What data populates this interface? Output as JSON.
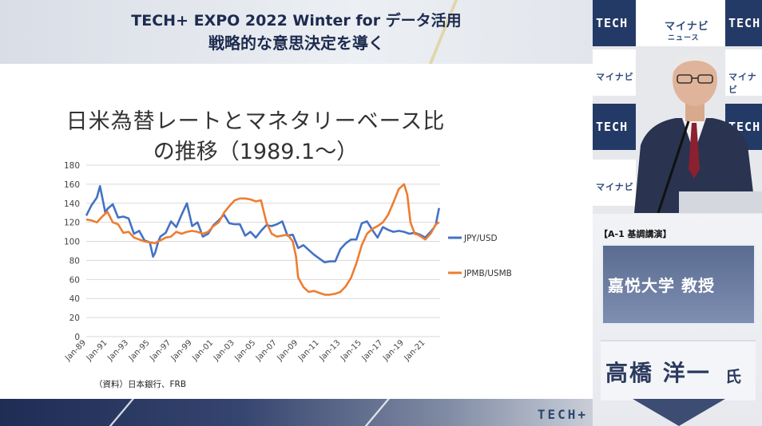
{
  "header": {
    "line1": "TECH+ EXPO 2022 Winter for データ活用",
    "line2": "戦略的な意思決定を導く"
  },
  "slide": {
    "title_line1": "日米為替レートとマネタリーベース比",
    "title_line2": "の推移（1989.1〜）",
    "source_note": "（資料）日本銀行、FRB"
  },
  "chart_data": {
    "type": "line",
    "title": "日米為替レートとマネタリーベース比の推移（1989.1〜）",
    "xlabel": "",
    "ylabel": "",
    "ylim": [
      0,
      180
    ],
    "yticks": [
      0,
      20,
      40,
      60,
      80,
      100,
      120,
      140,
      160,
      180
    ],
    "xlim": [
      1989,
      2022.4
    ],
    "xtick_labels": [
      "Jan-89",
      "Jan-91",
      "Jan-93",
      "Jan-95",
      "Jan-97",
      "Jan-99",
      "Jan-01",
      "Jan-03",
      "Jan-05",
      "Jan-07",
      "Jan-09",
      "Jan-11",
      "Jan-13",
      "Jan-15",
      "Jan-17",
      "Jan-19",
      "Jan-21"
    ],
    "grid": "horizontal",
    "legend": "right",
    "series": [
      {
        "name": "JPY/USD",
        "color": "#4472c4",
        "x": [
          1989.0,
          1989.5,
          1990.0,
          1990.3,
          1990.8,
          1991.0,
          1991.5,
          1992.0,
          1992.5,
          1993.0,
          1993.5,
          1994.0,
          1994.5,
          1995.0,
          1995.3,
          1995.5,
          1995.8,
          1996.0,
          1996.5,
          1997.0,
          1997.5,
          1998.0,
          1998.5,
          1999.0,
          1999.5,
          2000.0,
          2000.5,
          2001.0,
          2001.5,
          2002.0,
          2002.5,
          2003.0,
          2003.5,
          2004.0,
          2004.5,
          2005.0,
          2005.5,
          2006.0,
          2006.5,
          2007.0,
          2007.5,
          2008.0,
          2008.5,
          2009.0,
          2009.5,
          2010.0,
          2010.5,
          2011.0,
          2011.5,
          2012.0,
          2012.5,
          2013.0,
          2013.5,
          2014.0,
          2014.5,
          2015.0,
          2015.5,
          2016.0,
          2016.5,
          2017.0,
          2017.5,
          2018.0,
          2018.5,
          2019.0,
          2019.5,
          2020.0,
          2020.5,
          2021.0,
          2021.5,
          2021.8,
          2022.0,
          2022.3
        ],
        "y": [
          127,
          138,
          146,
          158,
          130,
          134,
          139,
          125,
          126,
          124,
          108,
          111,
          101,
          99,
          84,
          88,
          100,
          105,
          109,
          121,
          115,
          128,
          140,
          116,
          120,
          105,
          108,
          117,
          122,
          128,
          119,
          118,
          118,
          106,
          110,
          104,
          111,
          117,
          116,
          118,
          121,
          106,
          107,
          93,
          96,
          91,
          86,
          82,
          78,
          79,
          79,
          92,
          98,
          102,
          102,
          119,
          121,
          112,
          104,
          115,
          112,
          110,
          111,
          110,
          108,
          109,
          107,
          104,
          110,
          114,
          118,
          135
        ]
      },
      {
        "name": "JPMB/USMB",
        "color": "#ed7d31",
        "x": [
          1989.0,
          1989.5,
          1990.0,
          1990.5,
          1991.0,
          1991.5,
          1992.0,
          1992.5,
          1993.0,
          1993.5,
          1994.0,
          1994.5,
          1995.0,
          1995.5,
          1996.0,
          1996.5,
          1997.0,
          1997.5,
          1998.0,
          1998.5,
          1999.0,
          1999.5,
          2000.0,
          2000.5,
          2001.0,
          2001.5,
          2002.0,
          2002.5,
          2003.0,
          2003.5,
          2004.0,
          2004.5,
          2005.0,
          2005.5,
          2006.0,
          2006.5,
          2007.0,
          2007.5,
          2008.0,
          2008.5,
          2008.8,
          2009.0,
          2009.5,
          2010.0,
          2010.5,
          2011.0,
          2011.5,
          2012.0,
          2012.5,
          2013.0,
          2013.5,
          2014.0,
          2014.5,
          2015.0,
          2015.5,
          2016.0,
          2016.5,
          2017.0,
          2017.5,
          2018.0,
          2018.5,
          2019.0,
          2019.3,
          2019.6,
          2020.0,
          2020.3,
          2020.6,
          2021.0,
          2021.5,
          2022.0,
          2022.3
        ],
        "y": [
          123,
          122,
          120,
          126,
          131,
          120,
          118,
          109,
          110,
          104,
          102,
          100,
          99,
          98,
          101,
          104,
          105,
          110,
          108,
          110,
          111,
          110,
          108,
          110,
          116,
          120,
          130,
          137,
          143,
          145,
          145,
          144,
          142,
          143,
          120,
          108,
          105,
          106,
          107,
          100,
          84,
          62,
          52,
          47,
          48,
          46,
          44,
          44,
          45,
          47,
          53,
          62,
          77,
          96,
          108,
          113,
          116,
          120,
          128,
          141,
          155,
          160,
          149,
          120,
          108,
          107,
          105,
          102,
          108,
          118,
          120
        ]
      }
    ]
  },
  "sidebar": {
    "brand_tile_text": "マイナビ",
    "brand_tile_sub": "ニュース",
    "tech_tile_text": "TECH",
    "session_label": "【A-1 基調講演】",
    "role": "嘉悦大学 教授",
    "speaker_name": "高橋 洋一",
    "speaker_suffix": "氏"
  },
  "footer": {
    "logo": "TECH+"
  }
}
